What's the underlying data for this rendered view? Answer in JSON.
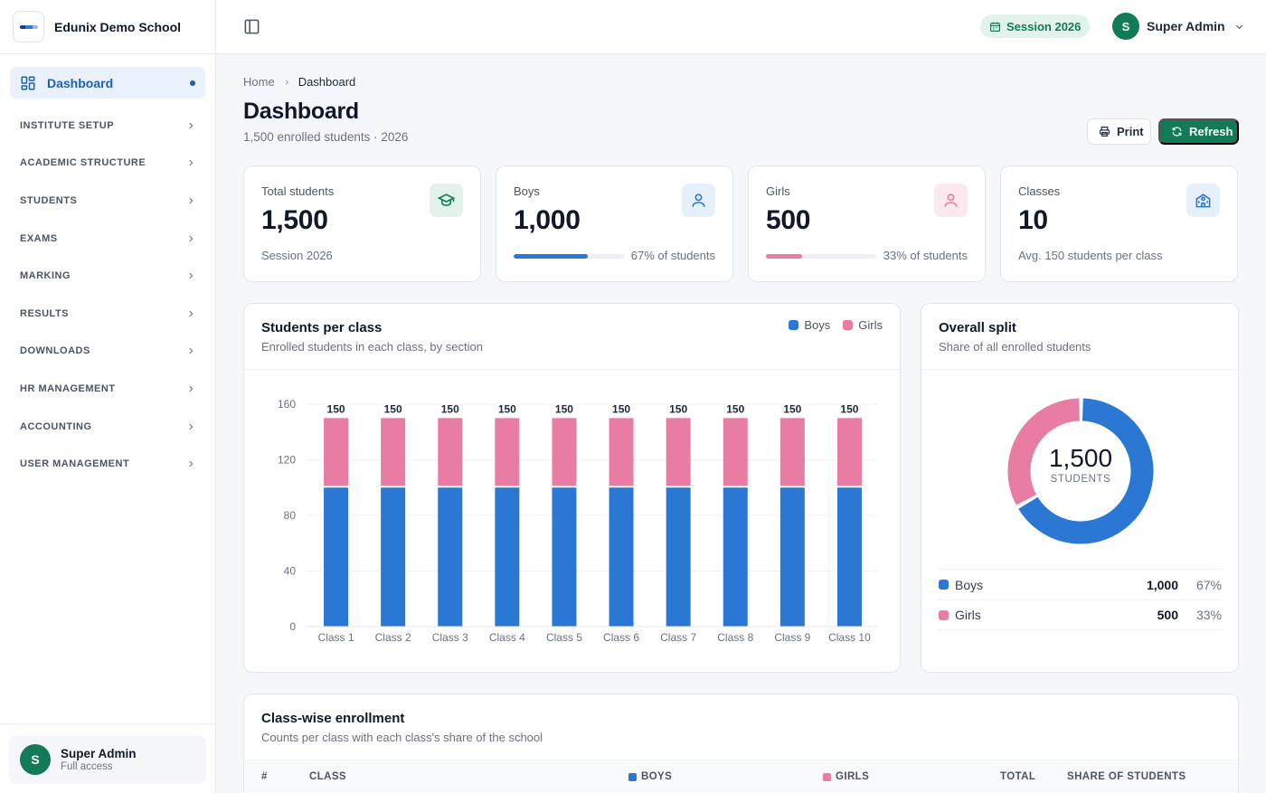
{
  "brand": {
    "name": "Edunix Demo School"
  },
  "nav": {
    "dashboard": "Dashboard",
    "items": [
      {
        "label": "INSTITUTE SETUP"
      },
      {
        "label": "ACADEMIC STRUCTURE"
      },
      {
        "label": "STUDENTS"
      },
      {
        "label": "EXAMS"
      },
      {
        "label": "MARKING"
      },
      {
        "label": "RESULTS"
      },
      {
        "label": "DOWNLOADS"
      },
      {
        "label": "HR MANAGEMENT"
      },
      {
        "label": "ACCOUNTING"
      },
      {
        "label": "USER MANAGEMENT"
      }
    ]
  },
  "sidebar_user": {
    "initial": "S",
    "name": "Super Admin",
    "role": "Full access"
  },
  "topbar": {
    "session": "Session 2026",
    "user_initial": "S",
    "user_name": "Super Admin"
  },
  "breadcrumb": {
    "home": "Home",
    "current": "Dashboard"
  },
  "page": {
    "title": "Dashboard",
    "subtitle": "1,500 enrolled students · 2026"
  },
  "actions": {
    "print": "Print",
    "refresh": "Refresh"
  },
  "stats": {
    "total": {
      "label": "Total students",
      "value": "1,500",
      "note": "Session 2026"
    },
    "boys": {
      "label": "Boys",
      "value": "1,000",
      "pct_text": "67% of students",
      "fraction": 0.67
    },
    "girls": {
      "label": "Girls",
      "value": "500",
      "pct_text": "33% of students",
      "fraction": 0.33
    },
    "classes": {
      "label": "Classes",
      "value": "10",
      "note": "Avg. 150 students per class"
    }
  },
  "colors": {
    "boys": "#2b78d4",
    "girls": "#e87ca3",
    "accent": "#137a57"
  },
  "students_chart": {
    "title": "Students per class",
    "subtitle": "Enrolled students in each class, by section",
    "legend_boys": "Boys",
    "legend_girls": "Girls"
  },
  "chart_data": {
    "type": "bar",
    "stacked": true,
    "categories": [
      "Class 1",
      "Class 2",
      "Class 3",
      "Class 4",
      "Class 5",
      "Class 6",
      "Class 7",
      "Class 8",
      "Class 9",
      "Class 10"
    ],
    "series": [
      {
        "name": "Boys",
        "values": [
          100,
          100,
          100,
          100,
          100,
          100,
          100,
          100,
          100,
          100
        ]
      },
      {
        "name": "Girls",
        "values": [
          50,
          50,
          50,
          50,
          50,
          50,
          50,
          50,
          50,
          50
        ]
      }
    ],
    "totals": [
      150,
      150,
      150,
      150,
      150,
      150,
      150,
      150,
      150,
      150
    ],
    "yticks": [
      0,
      40,
      80,
      120,
      160
    ],
    "ylim": [
      0,
      160
    ],
    "grid": true,
    "legend": "top-right"
  },
  "split": {
    "title": "Overall split",
    "subtitle": "Share of all enrolled students",
    "center_value": "1,500",
    "center_label": "STUDENTS",
    "rows": [
      {
        "name": "Boys",
        "count": "1,000",
        "pct": "67%",
        "fraction": 0.6667
      },
      {
        "name": "Girls",
        "count": "500",
        "pct": "33%",
        "fraction": 0.3333
      }
    ]
  },
  "enrollment": {
    "title": "Class-wise enrollment",
    "subtitle": "Counts per class with each class's share of the school",
    "columns": {
      "num": "#",
      "class": "CLASS",
      "boys": "BOYS",
      "girls": "GIRLS",
      "total": "TOTAL",
      "share": "SHARE OF STUDENTS"
    }
  }
}
